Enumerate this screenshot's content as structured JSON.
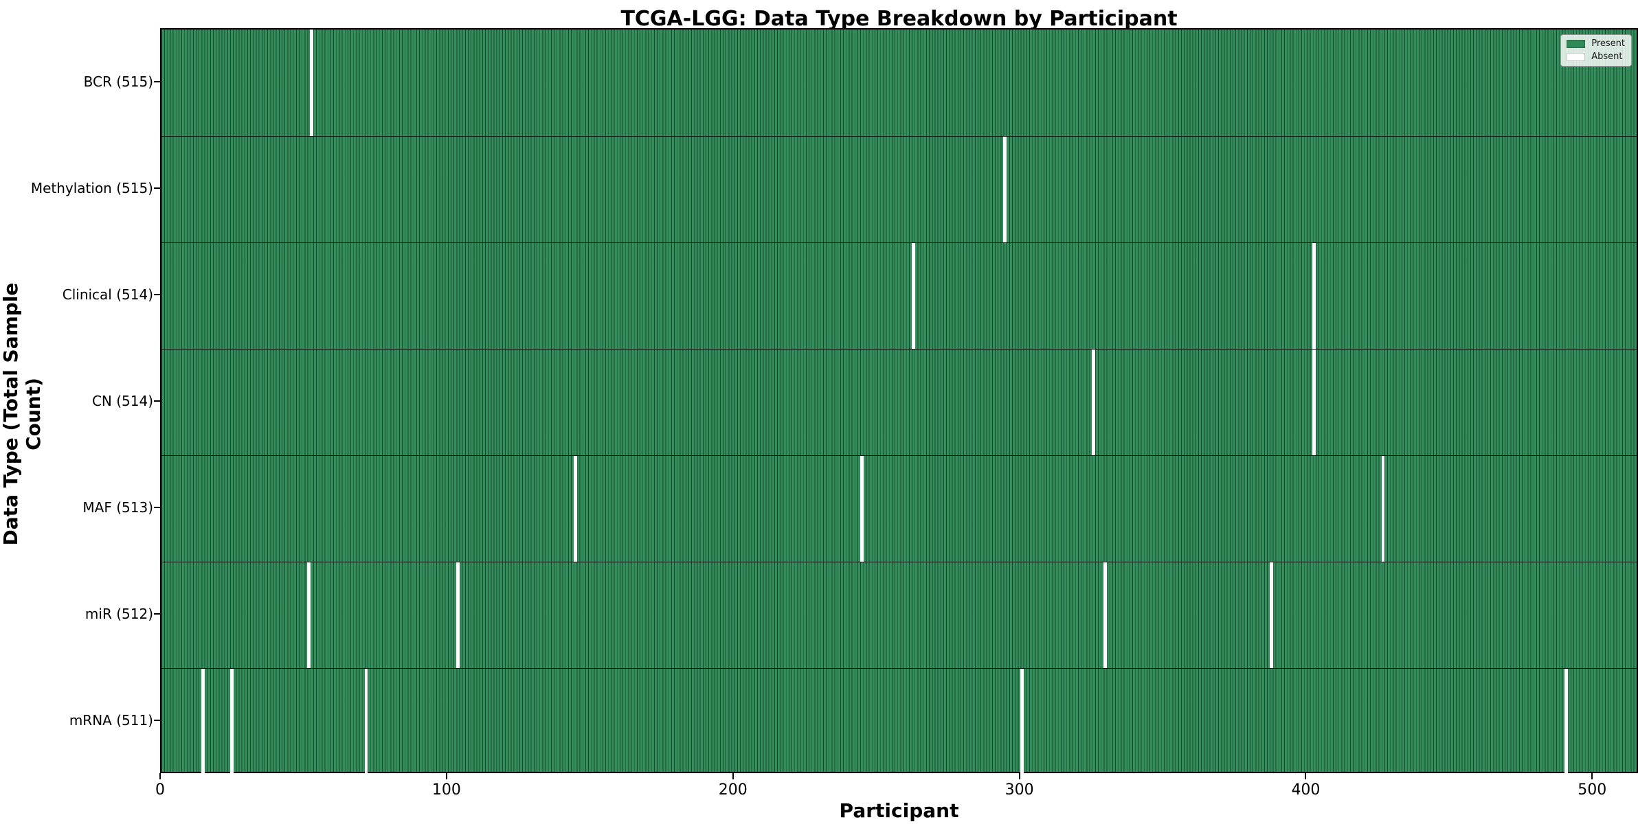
{
  "chart_data": {
    "type": "heatmap",
    "title": "TCGA-LGG: Data Type Breakdown by Participant",
    "xlabel": "Participant",
    "ylabel": "Data Type (Total Sample Count)",
    "n_participants": 516,
    "xlim": [
      0,
      516
    ],
    "x_ticks": [
      0,
      100,
      200,
      300,
      400,
      500
    ],
    "grid": false,
    "legend": {
      "position": "upper right",
      "entries": [
        {
          "label": "Present",
          "color": "#2e8b57"
        },
        {
          "label": "Absent",
          "color": "#ffffff"
        }
      ]
    },
    "colors": {
      "present": "#2e8b57",
      "absent": "#ffffff",
      "edge": "#000000"
    },
    "rows": [
      {
        "label": "BCR (515)",
        "data_type": "BCR",
        "present_count": 515,
        "absent_participants": [
          52
        ]
      },
      {
        "label": "Methylation (515)",
        "data_type": "Methylation",
        "present_count": 515,
        "absent_participants": [
          294
        ]
      },
      {
        "label": "Clinical (514)",
        "data_type": "Clinical",
        "present_count": 514,
        "absent_participants": [
          262,
          402
        ]
      },
      {
        "label": "CN (514)",
        "data_type": "CN",
        "present_count": 514,
        "absent_participants": [
          325,
          402
        ]
      },
      {
        "label": "MAF (513)",
        "data_type": "MAF",
        "present_count": 513,
        "absent_participants": [
          144,
          244,
          426
        ]
      },
      {
        "label": "miR (512)",
        "data_type": "miR",
        "present_count": 512,
        "absent_participants": [
          51,
          103,
          329,
          387
        ]
      },
      {
        "label": "mRNA (511)",
        "data_type": "mRNA",
        "present_count": 511,
        "absent_participants": [
          14,
          24,
          71,
          300,
          490
        ]
      }
    ]
  }
}
